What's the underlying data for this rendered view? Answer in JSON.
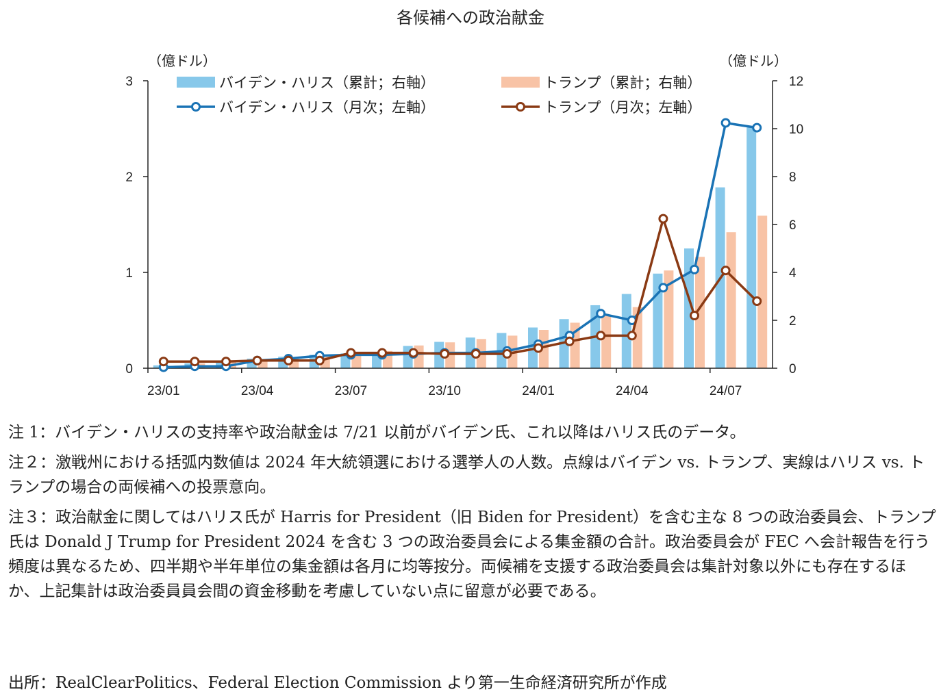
{
  "title": "各候補への政治献金",
  "chart_data": {
    "type": "bar+line",
    "title": "各候補への政治献金",
    "left_axis_unit": "（億ドル）",
    "right_axis_unit": "（億ドル）",
    "left_ylim": [
      0,
      3
    ],
    "right_ylim": [
      0,
      12
    ],
    "left_ticks": [
      "0",
      "1",
      "2",
      "3"
    ],
    "right_ticks": [
      "0",
      "2",
      "4",
      "6",
      "8",
      "10",
      "12"
    ],
    "categories": [
      "23/01",
      "23/02",
      "23/03",
      "23/04",
      "23/05",
      "23/06",
      "23/07",
      "23/08",
      "23/09",
      "23/10",
      "23/11",
      "23/12",
      "24/01",
      "24/02",
      "24/03",
      "24/04",
      "24/05",
      "24/06",
      "24/07",
      "24/08"
    ],
    "x_tick_labels": [
      "23/01",
      "23/04",
      "23/07",
      "23/10",
      "24/01",
      "24/04",
      "24/07"
    ],
    "legend_position": "top",
    "series": [
      {
        "name": "バイデン・ハリス（累計；右軸）",
        "type": "bar",
        "axis": "right",
        "color": "#87c8ea",
        "values": [
          0.12,
          0.2,
          0.3,
          0.4,
          0.48,
          0.56,
          0.62,
          0.65,
          0.93,
          1.1,
          1.28,
          1.47,
          1.7,
          2.05,
          2.63,
          3.1,
          3.95,
          5.0,
          7.55,
          10.05
        ]
      },
      {
        "name": "トランプ（累計；右軸）",
        "type": "bar",
        "axis": "right",
        "color": "#f8c3a6",
        "values": [
          0.1,
          0.2,
          0.28,
          0.38,
          0.46,
          0.52,
          0.6,
          0.72,
          0.95,
          1.08,
          1.22,
          1.36,
          1.6,
          1.9,
          2.22,
          2.55,
          4.08,
          4.65,
          5.68,
          6.37
        ]
      },
      {
        "name": "バイデン・ハリス（月次；左軸）",
        "type": "line",
        "axis": "left",
        "color": "#1a73b5",
        "values": [
          0.01,
          0.02,
          0.02,
          0.08,
          0.1,
          0.13,
          0.14,
          0.14,
          0.15,
          0.16,
          0.16,
          0.18,
          0.25,
          0.34,
          0.57,
          0.5,
          0.84,
          1.03,
          2.56,
          2.51
        ]
      },
      {
        "name": "トランプ（月次；左軸）",
        "type": "line",
        "axis": "left",
        "color": "#8a3a14",
        "values": [
          0.07,
          0.07,
          0.07,
          0.08,
          0.08,
          0.08,
          0.16,
          0.16,
          0.16,
          0.15,
          0.15,
          0.15,
          0.21,
          0.28,
          0.34,
          0.34,
          1.56,
          0.55,
          1.02,
          0.7
        ]
      }
    ]
  },
  "notes": [
    "注 1：バイデン・ハリスの支持率や政治献金は 7/21 以前がバイデン氏、これ以降はハリス氏のデータ。",
    "注２：激戦州における括弧内数値は 2024 年大統領選における選挙人の人数。点線はバイデン vs. トランプ、実線はハリス vs. トランプの場合の両候補への投票意向。",
    "注３：政治献金に関してはハリス氏が Harris for President（旧 Biden for President）を含む主な 8 つの政治委員会、トランプ氏は Donald J Trump for President 2024 を含む 3 つの政治委員会による集金額の合計。政治委員会が FEC へ会計報告を行う頻度は異なるため、四半期や半年単位の集金額は各月に均等按分。両候補を支援する政治委員会は集計対象以外にも存在するほか、上記集計は政治委員員会間の資金移動を考慮していない点に留意が必要である。"
  ],
  "source": "出所：RealClearPolitics、Federal Election Commission より第一生命経済研究所が作成"
}
